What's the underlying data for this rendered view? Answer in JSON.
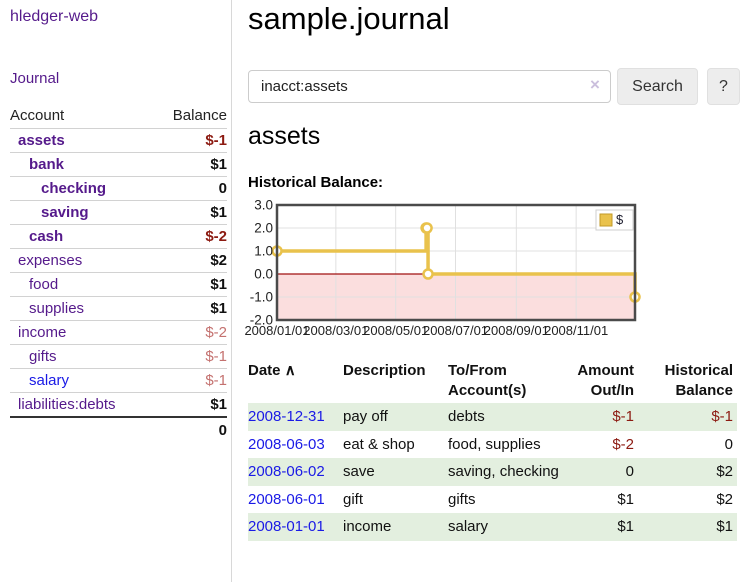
{
  "colors": {
    "purple": "#551A8B",
    "link_blue": "#1A1AE6",
    "neg_dark": "#8C1A11",
    "neg_light": "#C4716F",
    "row_green": "#E3EFDF",
    "gold": "#E9C24C",
    "gold_dark": "#C29A27",
    "pink": "#FBDEDE",
    "zero_red": "#A01010",
    "grid": "#E0E0E0",
    "chart_border": "#4A4A4A"
  },
  "sidebar": {
    "brand": "hledger-web",
    "nav_journal": "Journal",
    "header": {
      "account": "Account",
      "balance": "Balance"
    },
    "accounts": [
      {
        "name": "assets",
        "balance": "$-1",
        "indent": 1,
        "bold": true,
        "link": "purple",
        "balance_class": "neg-dark"
      },
      {
        "name": "bank",
        "balance": "$1",
        "indent": 2,
        "bold": true,
        "link": "purple",
        "balance_class": "pos"
      },
      {
        "name": "checking",
        "balance": "0",
        "indent": 3,
        "bold": true,
        "link": "purple",
        "balance_class": "pos"
      },
      {
        "name": "saving",
        "balance": "$1",
        "indent": 3,
        "bold": true,
        "link": "purple",
        "balance_class": "pos"
      },
      {
        "name": "cash",
        "balance": "$-2",
        "indent": 2,
        "bold": true,
        "link": "purple",
        "balance_class": "neg-dark"
      },
      {
        "name": "expenses",
        "balance": "$2",
        "indent": 1,
        "bold": false,
        "link": "purple",
        "balance_class": "pos"
      },
      {
        "name": "food",
        "balance": "$1",
        "indent": 2,
        "bold": false,
        "link": "purple",
        "balance_class": "pos"
      },
      {
        "name": "supplies",
        "balance": "$1",
        "indent": 2,
        "bold": false,
        "link": "purple",
        "balance_class": "pos"
      },
      {
        "name": "income",
        "balance": "$-2",
        "indent": 1,
        "bold": false,
        "link": "purple",
        "balance_class": "neg-light"
      },
      {
        "name": "gifts",
        "balance": "$-1",
        "indent": 2,
        "bold": false,
        "link": "purple",
        "balance_class": "neg-light"
      },
      {
        "name": "salary",
        "balance": "$-1",
        "indent": 2,
        "bold": false,
        "link": "blue",
        "balance_class": "neg-light"
      },
      {
        "name": "liabilities:debts",
        "balance": "$1",
        "indent": 1,
        "bold": false,
        "link": "purple",
        "balance_class": "pos"
      }
    ],
    "total": "0"
  },
  "main": {
    "title": "sample.journal",
    "search": {
      "value": "inacct:assets",
      "clear": "×",
      "button": "Search",
      "help": "?"
    },
    "account_heading": "assets",
    "chart_label": "Historical Balance:"
  },
  "chart_data": {
    "type": "line",
    "step": true,
    "title": "Historical Balance",
    "legend": {
      "label": "$",
      "position": "top-right"
    },
    "x_start": "2008-01-01",
    "x_end": "2008-12-31",
    "ylim": [
      -2,
      3
    ],
    "grid": true,
    "negative_region_shaded": true,
    "zero_line": true,
    "yticks": [
      {
        "label": "3.0",
        "value": 3
      },
      {
        "label": "2.0",
        "value": 2
      },
      {
        "label": "1.0",
        "value": 1
      },
      {
        "label": "0.0",
        "value": 0
      },
      {
        "label": "-1.0",
        "value": -1
      },
      {
        "label": "-2.0",
        "value": -2
      }
    ],
    "xticks": [
      {
        "label": "2008/01/01",
        "date": "2008-01-01"
      },
      {
        "label": "2008/03/01",
        "date": "2008-03-01"
      },
      {
        "label": "2008/05/01",
        "date": "2008-05-01"
      },
      {
        "label": "2008/07/01",
        "date": "2008-07-01"
      },
      {
        "label": "2008/09/01",
        "date": "2008-09-01"
      },
      {
        "label": "2008/11/01",
        "date": "2008-11-01"
      }
    ],
    "series": [
      {
        "name": "$",
        "points": [
          {
            "date": "2008-01-01",
            "value": 1
          },
          {
            "date": "2008-06-01",
            "value": 2
          },
          {
            "date": "2008-06-02",
            "value": 2
          },
          {
            "date": "2008-06-03",
            "value": 0
          },
          {
            "date": "2008-12-31",
            "value": -1
          }
        ]
      }
    ]
  },
  "register": {
    "headers": {
      "date": "Date",
      "sort_arrow": "∧",
      "description": "Description",
      "accounts": "To/From Account(s)",
      "amount": "Amount Out/In",
      "balance": "Historical Balance"
    },
    "rows": [
      {
        "date": "2008-12-31",
        "description": "pay off",
        "accounts": "debts",
        "amount": "$-1",
        "amount_negative": true,
        "balance": "$-1",
        "balance_negative": true,
        "shaded": true
      },
      {
        "date": "2008-06-03",
        "description": "eat & shop",
        "accounts": "food, supplies",
        "amount": "$-2",
        "amount_negative": true,
        "balance": "0",
        "balance_negative": false,
        "shaded": false
      },
      {
        "date": "2008-06-02",
        "description": "save",
        "accounts": "saving, checking",
        "amount": "0",
        "amount_negative": false,
        "balance": "$2",
        "balance_negative": false,
        "shaded": true
      },
      {
        "date": "2008-06-01",
        "description": "gift",
        "accounts": "gifts",
        "amount": "$1",
        "amount_negative": false,
        "balance": "$2",
        "balance_negative": false,
        "shaded": false
      },
      {
        "date": "2008-01-01",
        "description": "income",
        "accounts": "salary",
        "amount": "$1",
        "amount_negative": false,
        "balance": "$1",
        "balance_negative": false,
        "shaded": true
      }
    ]
  }
}
